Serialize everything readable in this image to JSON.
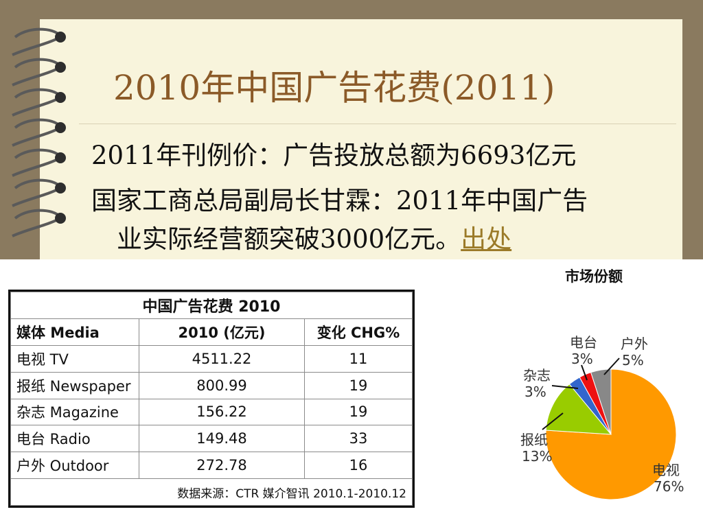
{
  "title": "2010年中国广告花费(2011)",
  "lines": {
    "l1": "2011年刊例价：广告投放总额为6693亿元",
    "l2": "国家工商总局副局长甘霖：2011年中国广告",
    "l3": "业实际经营额突破3000亿元。",
    "link": "出处"
  },
  "table": {
    "title": "中国广告花费 2010",
    "headers": [
      "媒体 Media",
      "2010 (亿元)",
      "变化 CHG%"
    ],
    "rows": [
      [
        "电视 TV",
        "4511.22",
        "11"
      ],
      [
        "报纸 Newspaper",
        "800.99",
        "19"
      ],
      [
        "杂志 Magazine",
        "156.22",
        "19"
      ],
      [
        "电台 Radio",
        "149.48",
        "33"
      ],
      [
        "户外 Outdoor",
        "272.78",
        "16"
      ]
    ],
    "source": "数据来源：CTR 媒介智讯 2010.1-2010.12"
  },
  "chart_data": {
    "type": "pie",
    "title": "市场份额",
    "slices": [
      {
        "name": "电视",
        "value": 76,
        "label": "76%",
        "color": "#ff9900"
      },
      {
        "name": "报纸",
        "value": 13,
        "label": "13%",
        "color": "#99cc00"
      },
      {
        "name": "杂志",
        "value": 3,
        "label": "3%",
        "color": "#3366cc"
      },
      {
        "name": "电台",
        "value": 3,
        "label": "3%",
        "color": "#ee1111"
      },
      {
        "name": "户外",
        "value": 5,
        "label": "5%",
        "color": "#888888"
      }
    ]
  }
}
